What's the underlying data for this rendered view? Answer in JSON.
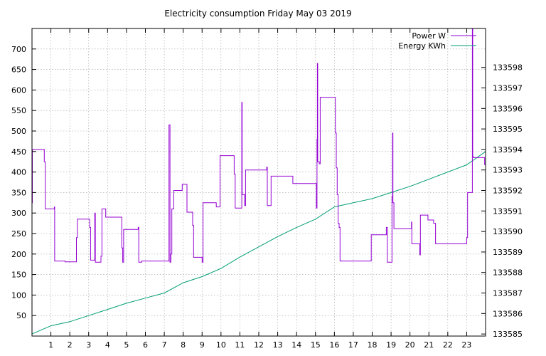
{
  "chart_data": {
    "type": "line",
    "title": "Electricity consumption Friday May 03 2019",
    "xlabel": "",
    "ylabel": "",
    "y2label": "",
    "xlim": [
      0,
      24
    ],
    "ylim": [
      0,
      750
    ],
    "y2lim": [
      133584.9,
      133599.9
    ],
    "x_ticks": [
      1,
      2,
      3,
      4,
      5,
      6,
      7,
      8,
      9,
      10,
      11,
      12,
      13,
      14,
      15,
      16,
      17,
      18,
      19,
      20,
      21,
      22,
      23
    ],
    "y_ticks": [
      50,
      100,
      150,
      200,
      250,
      300,
      350,
      400,
      450,
      500,
      550,
      600,
      650,
      700
    ],
    "y2_ticks": [
      133585,
      133586,
      133587,
      133588,
      133589,
      133590,
      133591,
      133592,
      133593,
      133594,
      133595,
      133596,
      133597,
      133598
    ],
    "grid": true,
    "legend_position": "top-right",
    "series": [
      {
        "name": "Power W",
        "axis": "left",
        "color": "#9400d3",
        "points": [
          [
            0.0,
            325
          ],
          [
            0.02,
            455
          ],
          [
            0.6,
            455
          ],
          [
            0.65,
            425
          ],
          [
            0.7,
            310
          ],
          [
            1.15,
            310
          ],
          [
            1.18,
            315
          ],
          [
            1.2,
            183
          ],
          [
            1.7,
            183
          ],
          [
            1.75,
            181
          ],
          [
            2.3,
            181
          ],
          [
            2.35,
            240
          ],
          [
            2.4,
            285
          ],
          [
            3.0,
            285
          ],
          [
            3.05,
            265
          ],
          [
            3.1,
            185
          ],
          [
            3.3,
            185
          ],
          [
            3.32,
            300
          ],
          [
            3.35,
            180
          ],
          [
            3.6,
            180
          ],
          [
            3.65,
            195
          ],
          [
            3.7,
            310
          ],
          [
            3.85,
            310
          ],
          [
            3.9,
            290
          ],
          [
            4.7,
            290
          ],
          [
            4.75,
            215
          ],
          [
            4.8,
            180
          ],
          [
            4.85,
            260
          ],
          [
            5.6,
            260
          ],
          [
            5.62,
            265
          ],
          [
            5.65,
            180
          ],
          [
            5.8,
            183
          ],
          [
            7.2,
            183
          ],
          [
            7.25,
            515
          ],
          [
            7.3,
            180
          ],
          [
            7.35,
            200
          ],
          [
            7.4,
            310
          ],
          [
            7.5,
            355
          ],
          [
            7.9,
            355
          ],
          [
            7.95,
            370
          ],
          [
            8.15,
            370
          ],
          [
            8.2,
            302
          ],
          [
            8.45,
            302
          ],
          [
            8.5,
            270
          ],
          [
            8.55,
            192
          ],
          [
            8.95,
            192
          ],
          [
            9.0,
            180
          ],
          [
            9.05,
            325
          ],
          [
            9.7,
            325
          ],
          [
            9.75,
            315
          ],
          [
            9.9,
            315
          ],
          [
            9.95,
            440
          ],
          [
            10.65,
            440
          ],
          [
            10.7,
            395
          ],
          [
            10.75,
            312
          ],
          [
            11.05,
            312
          ],
          [
            11.1,
            570
          ],
          [
            11.12,
            345
          ],
          [
            11.2,
            345
          ],
          [
            11.25,
            318
          ],
          [
            11.3,
            405
          ],
          [
            12.4,
            405
          ],
          [
            12.42,
            412
          ],
          [
            12.45,
            318
          ],
          [
            12.6,
            318
          ],
          [
            12.65,
            390
          ],
          [
            13.75,
            390
          ],
          [
            13.8,
            372
          ],
          [
            15.0,
            372
          ],
          [
            15.05,
            312
          ],
          [
            15.08,
            480
          ],
          [
            15.1,
            665
          ],
          [
            15.12,
            425
          ],
          [
            15.2,
            420
          ],
          [
            15.25,
            582
          ],
          [
            16.0,
            582
          ],
          [
            16.05,
            495
          ],
          [
            16.1,
            410
          ],
          [
            16.15,
            345
          ],
          [
            16.2,
            275
          ],
          [
            16.25,
            265
          ],
          [
            16.3,
            183
          ],
          [
            17.9,
            183
          ],
          [
            17.95,
            247
          ],
          [
            18.7,
            247
          ],
          [
            18.75,
            265
          ],
          [
            18.8,
            180
          ],
          [
            19.0,
            180
          ],
          [
            19.05,
            340
          ],
          [
            19.08,
            495
          ],
          [
            19.1,
            325
          ],
          [
            19.15,
            262
          ],
          [
            20.05,
            262
          ],
          [
            20.08,
            278
          ],
          [
            20.1,
            225
          ],
          [
            20.5,
            225
          ],
          [
            20.52,
            198
          ],
          [
            20.55,
            295
          ],
          [
            20.9,
            295
          ],
          [
            20.95,
            283
          ],
          [
            21.2,
            283
          ],
          [
            21.25,
            275
          ],
          [
            21.35,
            225
          ],
          [
            22.95,
            225
          ],
          [
            23.0,
            240
          ],
          [
            23.05,
            350
          ],
          [
            23.25,
            350
          ],
          [
            23.3,
            760
          ],
          [
            23.32,
            438
          ],
          [
            23.35,
            435
          ],
          [
            23.9,
            435
          ],
          [
            23.95,
            418
          ],
          [
            24.0,
            340
          ]
        ]
      },
      {
        "name": "Energy KWh",
        "axis": "right",
        "color": "#009e73",
        "points": [
          [
            0.0,
            133585.0
          ],
          [
            1.0,
            133585.4
          ],
          [
            2.0,
            133585.6
          ],
          [
            3.0,
            133585.9
          ],
          [
            4.0,
            133586.2
          ],
          [
            5.0,
            133586.5
          ],
          [
            6.0,
            133586.75
          ],
          [
            7.0,
            133587.0
          ],
          [
            8.0,
            133587.5
          ],
          [
            9.0,
            133587.8
          ],
          [
            10.0,
            133588.2
          ],
          [
            11.0,
            133588.75
          ],
          [
            12.0,
            133589.25
          ],
          [
            13.0,
            133589.75
          ],
          [
            14.0,
            133590.2
          ],
          [
            15.0,
            133590.6
          ],
          [
            16.0,
            133591.2
          ],
          [
            17.0,
            133591.4
          ],
          [
            18.0,
            133591.6
          ],
          [
            19.0,
            133591.9
          ],
          [
            20.0,
            133592.2
          ],
          [
            21.0,
            133592.55
          ],
          [
            22.0,
            133592.9
          ],
          [
            23.0,
            133593.25
          ],
          [
            24.0,
            133593.9
          ]
        ]
      }
    ]
  }
}
